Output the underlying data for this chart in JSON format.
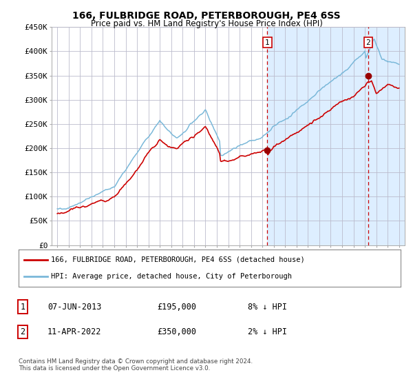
{
  "title": "166, FULBRIDGE ROAD, PETERBOROUGH, PE4 6SS",
  "subtitle": "Price paid vs. HM Land Registry's House Price Index (HPI)",
  "plot_bg_color": "#ffffff",
  "hpi_color": "#7ab8d9",
  "price_color": "#cc0000",
  "marker_color": "#990000",
  "dashed_color": "#cc0000",
  "shade_color": "#ddeeff",
  "grid_color": "#cccccc",
  "ylim": [
    0,
    450000
  ],
  "ytick_labels": [
    "£0",
    "£50K",
    "£100K",
    "£150K",
    "£200K",
    "£250K",
    "£300K",
    "£350K",
    "£400K",
    "£450K"
  ],
  "ytick_values": [
    0,
    50000,
    100000,
    150000,
    200000,
    250000,
    300000,
    350000,
    400000,
    450000
  ],
  "sale1_price": 195000,
  "sale1_x": 2013.44,
  "sale2_price": 350000,
  "sale2_x": 2022.28,
  "legend_line1": "166, FULBRIDGE ROAD, PETERBOROUGH, PE4 6SS (detached house)",
  "legend_line2": "HPI: Average price, detached house, City of Peterborough",
  "footer": "Contains HM Land Registry data © Crown copyright and database right 2024.\nThis data is licensed under the Open Government Licence v3.0.",
  "xmin": 1995,
  "xmax": 2025
}
